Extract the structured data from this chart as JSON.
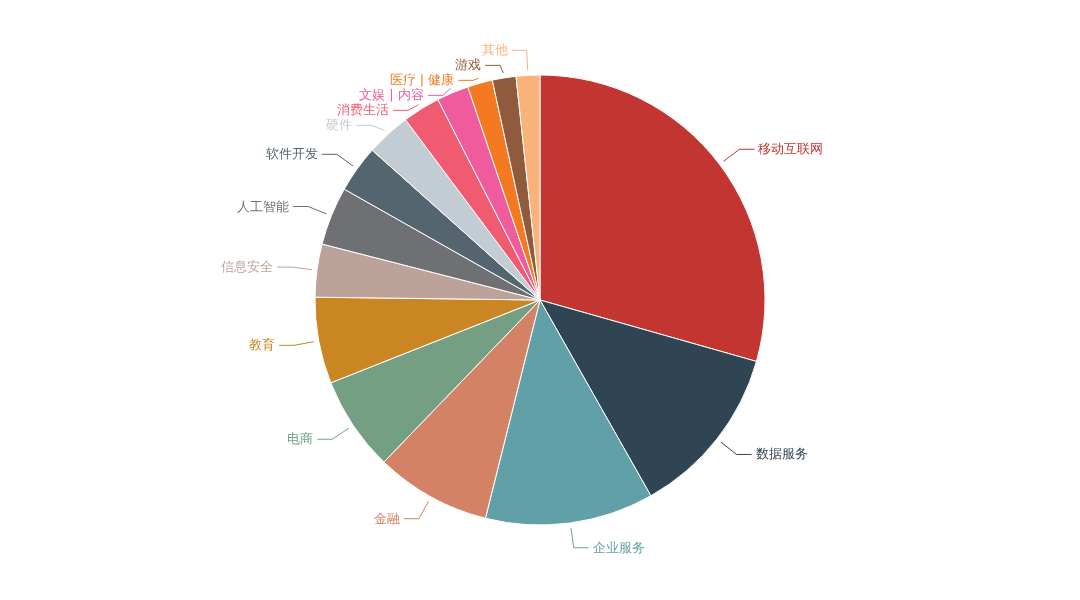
{
  "chart_data": {
    "type": "pie",
    "categories": [
      "移动互联网",
      "数据服务",
      "企业服务",
      "金融",
      "电商",
      "教育",
      "信息安全",
      "人工智能",
      "软件开发",
      "硬件",
      "消费生活",
      "文娱 | 内容",
      "医疗 | 健康",
      "游戏",
      "其他"
    ],
    "values": [
      29.4,
      12.4,
      12.1,
      8.3,
      6.8,
      6.2,
      3.8,
      4.2,
      3.4,
      3.2,
      2.7,
      2.3,
      1.8,
      1.7,
      1.7
    ],
    "colors": [
      "#c23531",
      "#2f4554",
      "#61a0a8",
      "#d48265",
      "#749f83",
      "#ca8622",
      "#bda29a",
      "#6e7074",
      "#546570",
      "#c4ccd3",
      "#f05b72",
      "#ef5b9c",
      "#f47920",
      "#905a3d",
      "#fab27b"
    ]
  }
}
